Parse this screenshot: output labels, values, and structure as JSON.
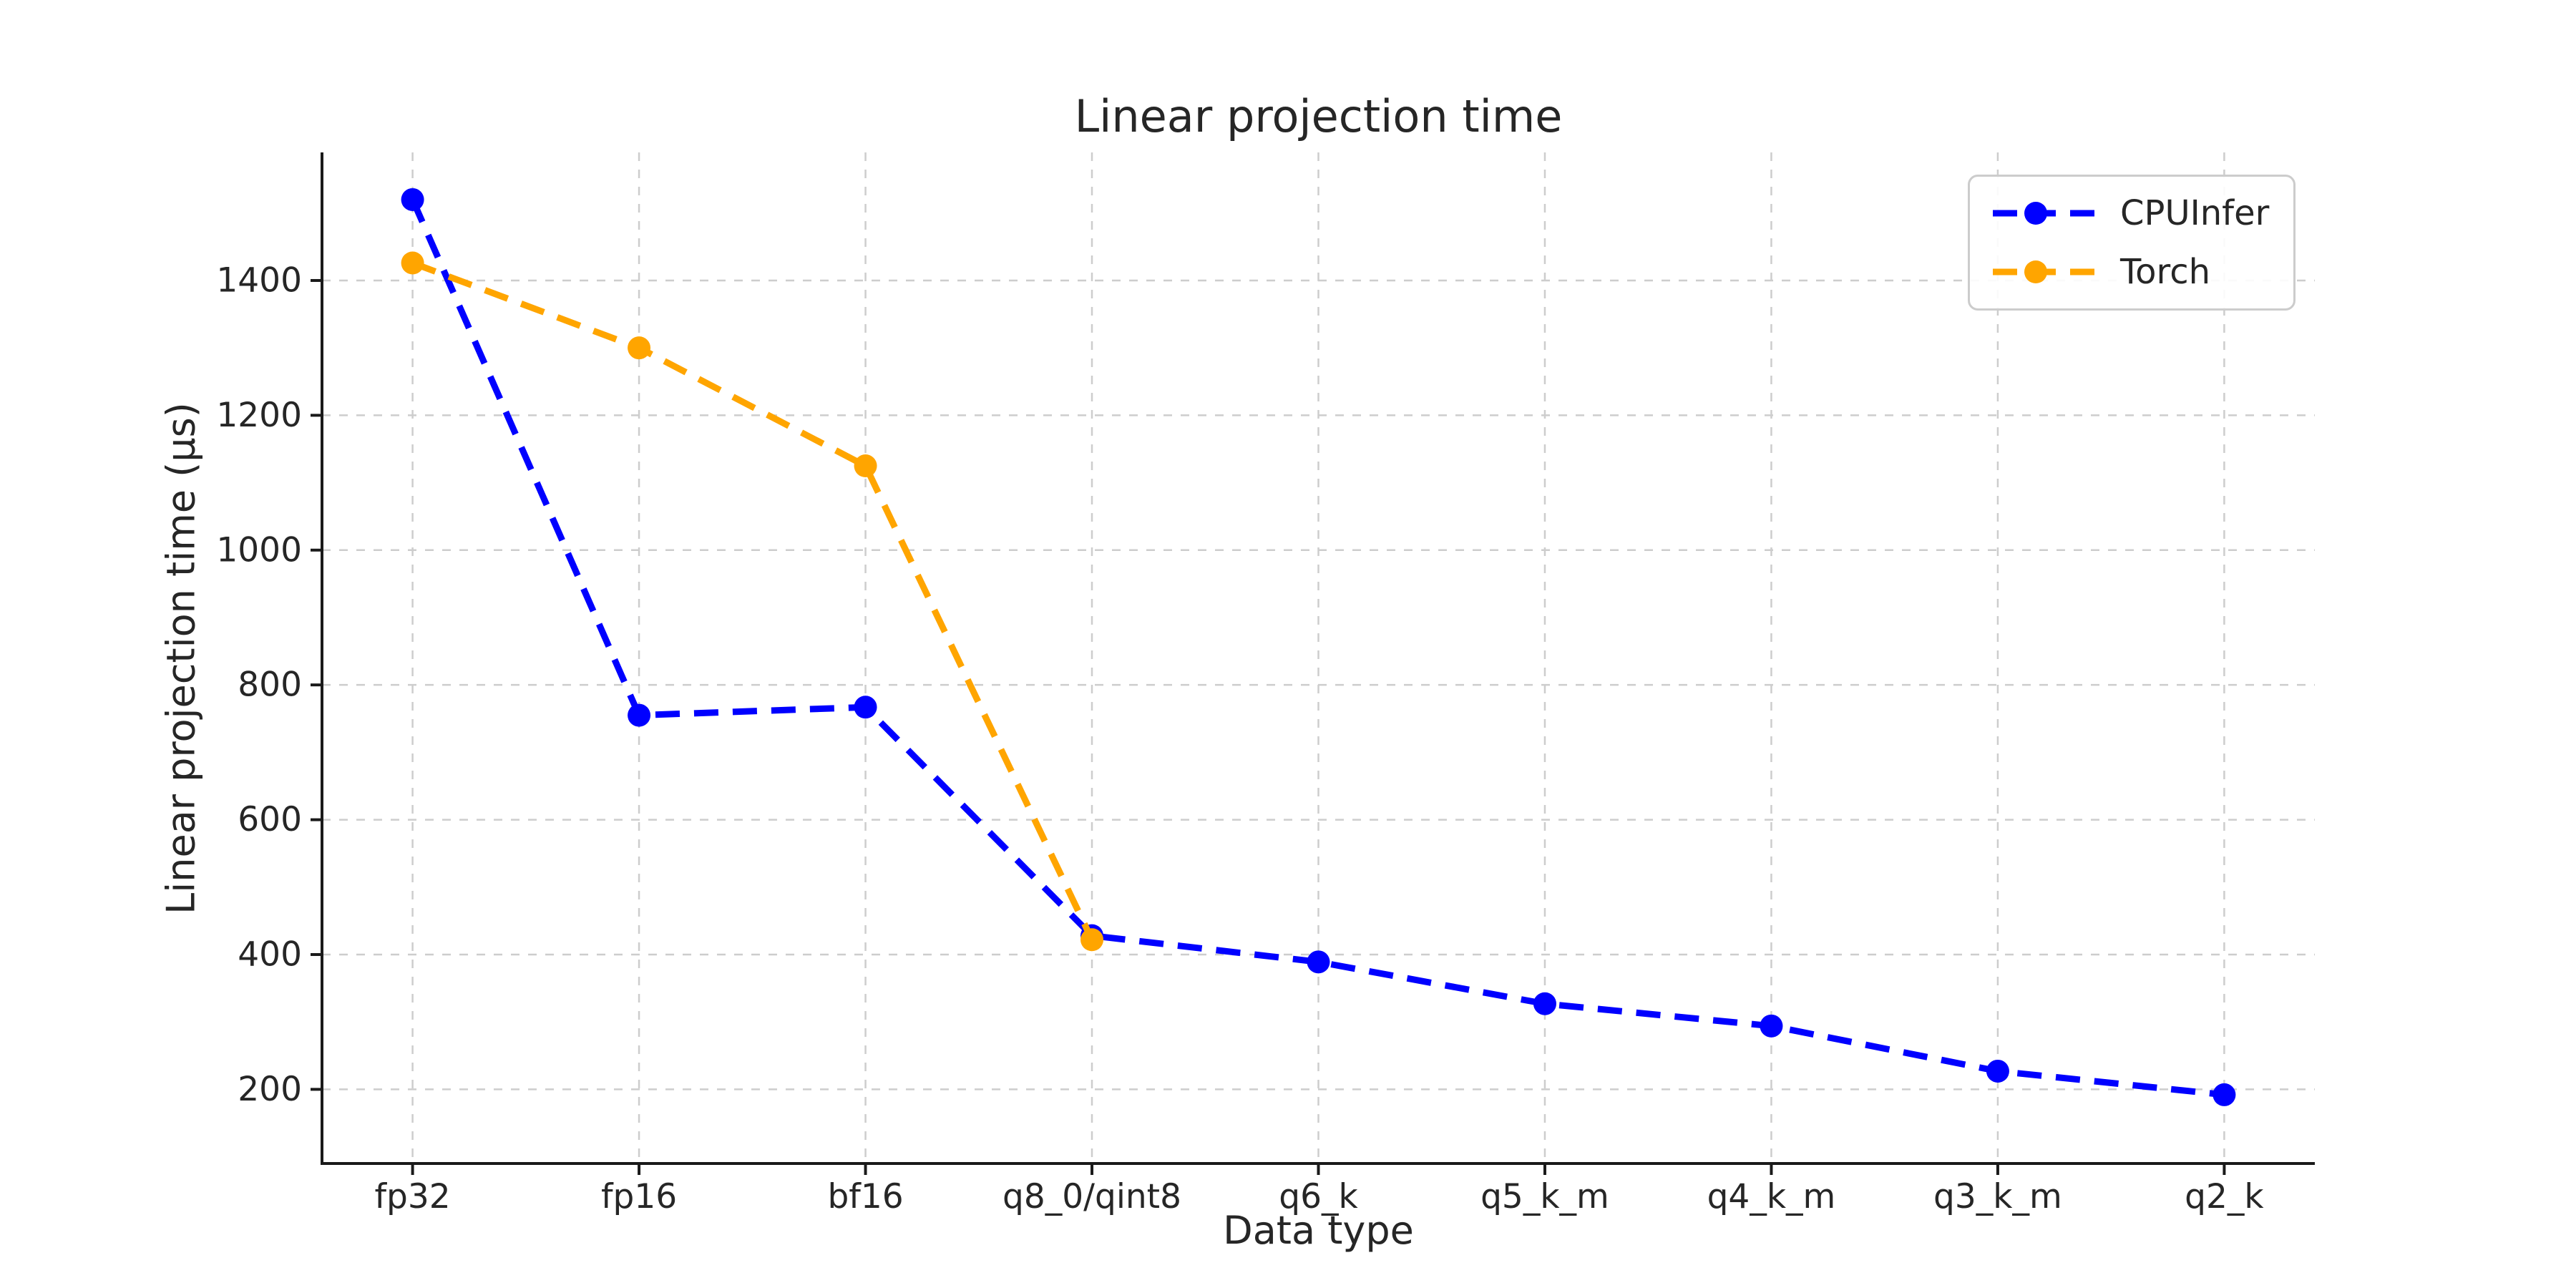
{
  "chart_data": {
    "type": "line",
    "title": "Linear projection time",
    "xlabel": "Data type",
    "ylabel": "Linear projection time (μs)",
    "categories": [
      "fp32",
      "fp16",
      "bf16",
      "q8_0/qint8",
      "q6_k",
      "q5_k_m",
      "q4_k_m",
      "q3_k_m",
      "q2_k"
    ],
    "series": [
      {
        "name": "CPUInfer",
        "color": "#0000ff",
        "values": [
          1520,
          755,
          767,
          428,
          389,
          327,
          294,
          227,
          192
        ]
      },
      {
        "name": "Torch",
        "color": "#ffa500",
        "values": [
          1426,
          1300,
          1125,
          422
        ]
      }
    ],
    "yticks": [
      200,
      400,
      600,
      800,
      1000,
      1200,
      1400
    ],
    "ylim": [
      90,
      1590
    ],
    "xlim": [
      -0.4,
      8.4
    ],
    "grid": true,
    "grid_color": "#cdcdcd",
    "spine_color": "#1a1a1a",
    "tick_label_color": "#262626",
    "line_style": "dashed",
    "marker": "circle",
    "legend_position": "upper right"
  }
}
